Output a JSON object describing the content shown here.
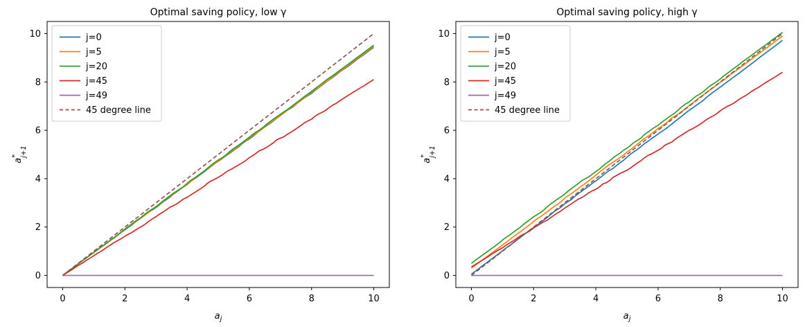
{
  "figure": {
    "background": "#ffffff"
  },
  "chart_data": [
    {
      "type": "line",
      "title": "Optimal saving policy, low γ",
      "xlabel": {
        "base": "a",
        "sub": "j"
      },
      "ylabel": {
        "base": "a",
        "sup": "*",
        "sub": "j+1"
      },
      "xlim": [
        -0.5,
        10.5
      ],
      "ylim": [
        -0.5,
        10.5
      ],
      "xticks": [
        0,
        2,
        4,
        6,
        8,
        10
      ],
      "yticks": [
        0,
        2,
        4,
        6,
        8,
        10
      ],
      "grid": false,
      "legend_position": "upper left",
      "series": [
        {
          "name": "j=0",
          "color": "#1f77b4",
          "linestyle": "solid",
          "x": [
            0,
            10
          ],
          "y": [
            0.0,
            9.43
          ],
          "jitter": 0.03
        },
        {
          "name": "j=5",
          "color": "#ff7f0e",
          "linestyle": "solid",
          "x": [
            0,
            10
          ],
          "y": [
            0.0,
            9.46
          ],
          "jitter": 0.03
        },
        {
          "name": "j=20",
          "color": "#2ca02c",
          "linestyle": "solid",
          "x": [
            0,
            10
          ],
          "y": [
            0.0,
            9.52
          ],
          "jitter": 0.03
        },
        {
          "name": "j=45",
          "color": "#d62728",
          "linestyle": "solid",
          "x": [
            0,
            10
          ],
          "y": [
            0.0,
            8.1
          ],
          "jitter": 0.05
        },
        {
          "name": "j=49",
          "color": "#9467bd",
          "linestyle": "solid",
          "x": [
            0,
            10
          ],
          "y": [
            0.0,
            0.0
          ],
          "jitter": 0
        },
        {
          "name": "45 degree line",
          "color": "#8c564b",
          "linestyle": "dashed",
          "x": [
            0,
            10
          ],
          "y": [
            0.0,
            10.0
          ],
          "jitter": 0
        }
      ]
    },
    {
      "type": "line",
      "title": "Optimal saving policy, high γ",
      "xlabel": {
        "base": "a",
        "sub": "j"
      },
      "ylabel": {
        "base": "a",
        "sup": "*",
        "sub": "j+1"
      },
      "xlim": [
        -0.5,
        10.5
      ],
      "ylim": [
        -0.5,
        10.5
      ],
      "xticks": [
        0,
        2,
        4,
        6,
        8,
        10
      ],
      "yticks": [
        0,
        2,
        4,
        6,
        8,
        10
      ],
      "grid": false,
      "legend_position": "upper left",
      "series": [
        {
          "name": "j=0",
          "color": "#1f77b4",
          "linestyle": "solid",
          "x": [
            0,
            10
          ],
          "y": [
            0.05,
            9.72
          ],
          "jitter": 0.03
        },
        {
          "name": "j=5",
          "color": "#ff7f0e",
          "linestyle": "solid",
          "x": [
            0,
            10
          ],
          "y": [
            0.3,
            9.9
          ],
          "jitter": 0.03
        },
        {
          "name": "j=20",
          "color": "#2ca02c",
          "linestyle": "solid",
          "x": [
            0,
            10
          ],
          "y": [
            0.5,
            10.05
          ],
          "jitter": 0.04
        },
        {
          "name": "j=45",
          "color": "#d62728",
          "linestyle": "solid",
          "x": [
            0,
            10
          ],
          "y": [
            0.35,
            8.4
          ],
          "jitter": 0.05
        },
        {
          "name": "j=49",
          "color": "#9467bd",
          "linestyle": "solid",
          "x": [
            0,
            10
          ],
          "y": [
            0.0,
            0.0
          ],
          "jitter": 0
        },
        {
          "name": "45 degree line",
          "color": "#8c564b",
          "linestyle": "dashed",
          "x": [
            0,
            10
          ],
          "y": [
            0.0,
            10.0
          ],
          "jitter": 0
        }
      ]
    }
  ]
}
